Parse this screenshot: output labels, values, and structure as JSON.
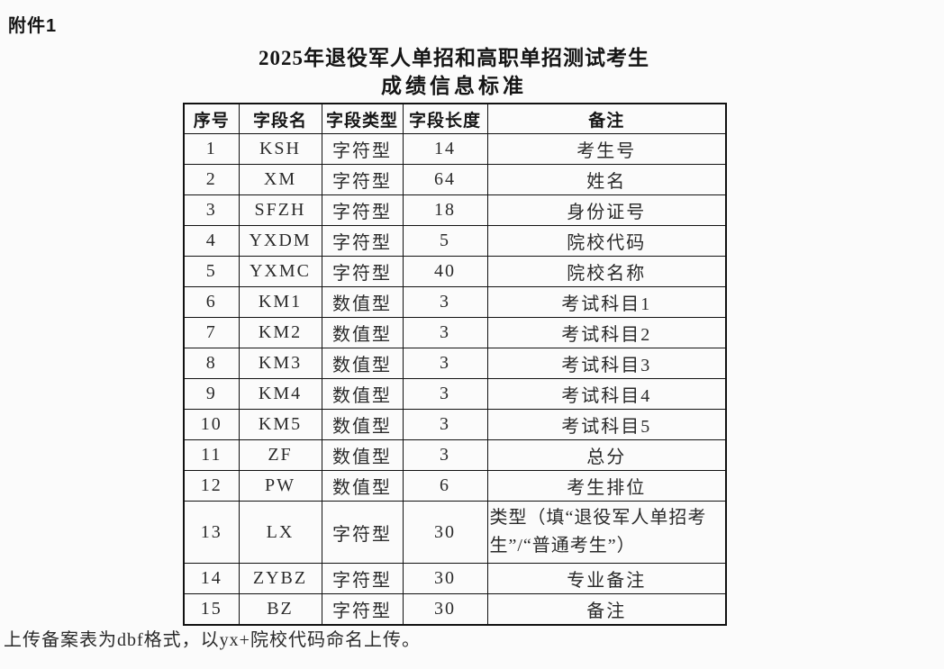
{
  "page": {
    "attachment_label": "附件1",
    "title_line1": "2025年退役军人单招和高职单招测试考生",
    "title_line2": "成绩信息标准",
    "footer_note": "上传备案表为dbf格式，以yx+院校代码命名上传。"
  },
  "table": {
    "headers": [
      "序号",
      "字段名",
      "字段类型",
      "字段长度",
      "备注"
    ],
    "column_keys": [
      "no",
      "field_name",
      "field_type",
      "field_length",
      "remark"
    ],
    "rows": [
      [
        "1",
        "KSH",
        "字符型",
        "14",
        "考生号"
      ],
      [
        "2",
        "XM",
        "字符型",
        "64",
        "姓名"
      ],
      [
        "3",
        "SFZH",
        "字符型",
        "18",
        "身份证号"
      ],
      [
        "4",
        "YXDM",
        "字符型",
        "5",
        "院校代码"
      ],
      [
        "5",
        "YXMC",
        "字符型",
        "40",
        "院校名称"
      ],
      [
        "6",
        "KM1",
        "数值型",
        "3",
        "考试科目1"
      ],
      [
        "7",
        "KM2",
        "数值型",
        "3",
        "考试科目2"
      ],
      [
        "8",
        "KM3",
        "数值型",
        "3",
        "考试科目3"
      ],
      [
        "9",
        "KM4",
        "数值型",
        "3",
        "考试科目4"
      ],
      [
        "10",
        "KM5",
        "数值型",
        "3",
        "考试科目5"
      ],
      [
        "11",
        "ZF",
        "数值型",
        "3",
        "总分"
      ],
      [
        "12",
        "PW",
        "数值型",
        "6",
        "考生排位"
      ],
      [
        "13",
        "LX",
        "字符型",
        "30",
        "类型（填“退役军人单招考生”/“普通考生”）"
      ],
      [
        "14",
        "ZYBZ",
        "字符型",
        "30",
        "专业备注"
      ],
      [
        "15",
        "BZ",
        "字符型",
        "30",
        "备注"
      ]
    ]
  },
  "colors": {
    "background": "#fbfbfb",
    "text": "#1f1f1f",
    "table_border": "#111111"
  }
}
